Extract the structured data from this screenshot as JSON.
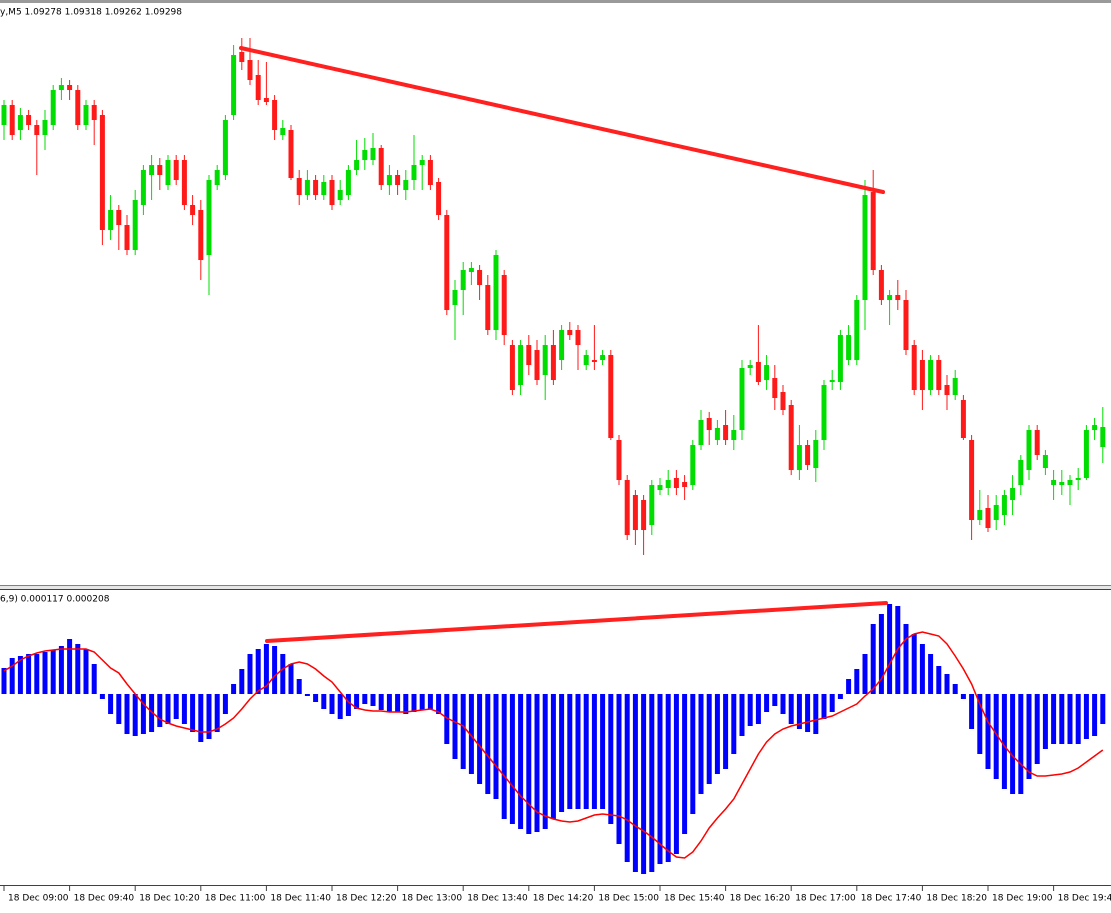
{
  "chart_data": [
    {
      "type": "candlestick",
      "title": "y,M5 1.09278 1.09318 1.09262 1.09298",
      "ylim": [
        1.09135,
        1.0972
      ],
      "up_color": "#00dd00",
      "down_color": "#ff1a1a",
      "open": [
        1.096,
        1.0962,
        1.09595,
        1.0961,
        1.096,
        1.0959,
        1.096,
        1.09635,
        1.0964,
        1.09635,
        1.096,
        1.0962,
        1.0961,
        1.09495,
        1.09515,
        1.095,
        1.09475,
        1.0952,
        1.0955,
        1.0956,
        1.0954,
        1.09565,
        1.09565,
        1.0952,
        1.09515,
        1.0947,
        1.0954,
        1.0955,
        1.0961,
        1.09673,
        1.09665,
        1.0965,
        1.09627,
        1.09625,
        1.0959,
        1.09595,
        1.09547,
        1.0953,
        1.09545,
        1.0953,
        1.09545,
        1.09525,
        1.0953,
        1.09555,
        1.09565,
        1.09565,
        1.09577,
        1.0954,
        1.0955,
        1.09535,
        1.09545,
        1.0956,
        1.09565,
        1.09543,
        1.0951,
        1.0942,
        1.09435,
        1.09453,
        1.09455,
        1.0944,
        1.09395,
        1.0945,
        1.0938,
        1.0934,
        1.0938,
        1.09375,
        1.0935,
        1.0938,
        1.09365,
        1.09395,
        1.09395,
        1.0936,
        1.09365,
        1.09365,
        1.0937,
        1.09285,
        1.09245,
        1.0923,
        1.09225,
        1.092,
        1.09235,
        1.09237,
        1.09247,
        1.09243,
        1.0924,
        1.0928,
        1.09307,
        1.09285,
        1.093,
        1.09285,
        1.09295,
        1.09357,
        1.09363,
        1.09345,
        1.09347,
        1.09333,
        1.0932,
        1.09255,
        1.0928,
        1.09257,
        1.09285,
        1.09343,
        1.09343,
        1.09365,
        1.09365,
        1.09425,
        1.09533,
        1.09455,
        1.09425,
        1.0943,
        1.09425,
        1.0938,
        1.09365,
        1.09335,
        1.09365,
        1.0934,
        1.0933,
        1.09325,
        1.09285,
        1.09205,
        1.09217,
        1.09205,
        1.0921,
        1.09225,
        1.0924,
        1.09255,
        1.09295,
        1.09257,
        1.0924,
        1.0924,
        1.0924,
        1.09245,
        1.09247,
        1.09295,
        1.09278
      ],
      "high": [
        1.09625,
        1.09625,
        1.09617,
        1.09615,
        1.09605,
        1.09615,
        1.0964,
        1.09647,
        1.09645,
        1.0964,
        1.09625,
        1.09625,
        1.09615,
        1.0953,
        1.0952,
        1.0951,
        1.09535,
        1.0956,
        1.0957,
        1.09567,
        1.0957,
        1.0957,
        1.0957,
        1.0953,
        1.09525,
        1.0955,
        1.0956,
        1.0961,
        1.0968,
        1.09687,
        1.09687,
        1.09665,
        1.09663,
        1.0963,
        1.09605,
        1.096,
        1.09555,
        1.09555,
        1.0955,
        1.0955,
        1.0955,
        1.09545,
        1.0956,
        1.09585,
        1.09587,
        1.09592,
        1.0958,
        1.0956,
        1.09555,
        1.09555,
        1.0959,
        1.0957,
        1.0957,
        1.09547,
        1.09515,
        1.09445,
        1.09463,
        1.09463,
        1.0946,
        1.0945,
        1.09475,
        1.09455,
        1.09385,
        1.09385,
        1.0939,
        1.09385,
        1.0939,
        1.09395,
        1.094,
        1.09403,
        1.094,
        1.09375,
        1.094,
        1.09375,
        1.09375,
        1.0929,
        1.0925,
        1.09235,
        1.0923,
        1.09245,
        1.09247,
        1.09255,
        1.09255,
        1.0925,
        1.09285,
        1.09315,
        1.09313,
        1.09305,
        1.09315,
        1.0931,
        1.09365,
        1.09365,
        1.094,
        1.0937,
        1.0936,
        1.0934,
        1.09325,
        1.093,
        1.09285,
        1.09295,
        1.09345,
        1.09355,
        1.09395,
        1.094,
        1.0943,
        1.09545,
        1.09555,
        1.0946,
        1.09435,
        1.09445,
        1.09435,
        1.09385,
        1.09375,
        1.0937,
        1.0937,
        1.0935,
        1.09355,
        1.0933,
        1.0929,
        1.09235,
        1.0923,
        1.0923,
        1.09235,
        1.0925,
        1.0927,
        1.093,
        1.093,
        1.09275,
        1.09255,
        1.09255,
        1.0925,
        1.09257,
        1.093,
        1.09307,
        1.09318
      ],
      "low": [
        1.09585,
        1.09585,
        1.09585,
        1.09595,
        1.0955,
        1.09575,
        1.09595,
        1.09625,
        1.09625,
        1.09595,
        1.09595,
        1.0958,
        1.0948,
        1.09485,
        1.09475,
        1.0947,
        1.0947,
        1.0951,
        1.09525,
        1.09535,
        1.09535,
        1.0954,
        1.09515,
        1.095,
        1.09445,
        1.0943,
        1.09535,
        1.09545,
        1.09605,
        1.09655,
        1.0964,
        1.0962,
        1.0962,
        1.09585,
        1.09585,
        1.09545,
        1.0952,
        1.09525,
        1.09525,
        1.09525,
        1.09515,
        1.0952,
        1.09525,
        1.0955,
        1.09555,
        1.0956,
        1.09535,
        1.0953,
        1.0953,
        1.09525,
        1.09535,
        1.09535,
        1.09535,
        1.09505,
        1.0941,
        1.09385,
        1.0941,
        1.0944,
        1.09425,
        1.0939,
        1.09385,
        1.0938,
        1.0933,
        1.0933,
        1.0935,
        1.0934,
        1.09325,
        1.0934,
        1.09355,
        1.09385,
        1.09355,
        1.09355,
        1.09355,
        1.0936,
        1.09285,
        1.0924,
        1.09185,
        1.0918,
        1.0917,
        1.0919,
        1.0923,
        1.0923,
        1.0923,
        1.09225,
        1.09235,
        1.09275,
        1.0928,
        1.0928,
        1.0928,
        1.09275,
        1.09285,
        1.0935,
        1.0934,
        1.09335,
        1.09315,
        1.0931,
        1.0925,
        1.09245,
        1.09255,
        1.09243,
        1.09275,
        1.09335,
        1.09335,
        1.0936,
        1.0936,
        1.09395,
        1.0945,
        1.0942,
        1.094,
        1.09415,
        1.0937,
        1.0933,
        1.09315,
        1.0933,
        1.0933,
        1.09315,
        1.09325,
        1.09285,
        1.09185,
        1.092,
        1.09193,
        1.09195,
        1.092,
        1.0921,
        1.0923,
        1.09245,
        1.09265,
        1.0925,
        1.09225,
        1.0923,
        1.0922,
        1.09235,
        1.09245,
        1.09285,
        1.09262
      ],
      "close": [
        1.0962,
        1.0959,
        1.0961,
        1.096,
        1.0959,
        1.09605,
        1.09635,
        1.0964,
        1.09635,
        1.096,
        1.0962,
        1.09605,
        1.09495,
        1.09515,
        1.095,
        1.09475,
        1.09525,
        1.09555,
        1.0956,
        1.0955,
        1.09565,
        1.09545,
        1.0952,
        1.0951,
        1.09465,
        1.09545,
        1.09555,
        1.09605,
        1.0967,
        1.09663,
        1.09645,
        1.09625,
        1.09623,
        1.09595,
        1.09597,
        1.09547,
        1.0953,
        1.09545,
        1.0953,
        1.09543,
        1.0952,
        1.09535,
        1.09555,
        1.09565,
        1.09575,
        1.09577,
        1.0954,
        1.0955,
        1.0954,
        1.09545,
        1.0956,
        1.09565,
        1.0954,
        1.0951,
        1.09415,
        1.09435,
        1.09455,
        1.09457,
        1.0944,
        1.09395,
        1.0947,
        1.0939,
        1.09335,
        1.0938,
        1.0936,
        1.09345,
        1.0938,
        1.09345,
        1.09395,
        1.0939,
        1.0938,
        1.0937,
        1.09363,
        1.0937,
        1.09287,
        1.09245,
        1.0919,
        1.09195,
        1.09195,
        1.0924,
        1.0924,
        1.09245,
        1.09237,
        1.09238,
        1.0928,
        1.09305,
        1.09295,
        1.09297,
        1.09285,
        1.09295,
        1.09357,
        1.0936,
        1.09343,
        1.0936,
        1.09327,
        1.09315,
        1.09255,
        1.0928,
        1.0926,
        1.09285,
        1.0934,
        1.09345,
        1.0939,
        1.0939,
        1.09425,
        1.0953,
        1.09455,
        1.09425,
        1.0943,
        1.09425,
        1.09375,
        1.09335,
        1.09335,
        1.09365,
        1.09335,
        1.0933,
        1.09347,
        1.09287,
        1.09205,
        1.09215,
        1.09197,
        1.0922,
        1.0923,
        1.09237,
        1.09265,
        1.09295,
        1.0927,
        1.0927,
        1.09245,
        1.09243,
        1.09245,
        1.09247,
        1.09295,
        1.093,
        1.09298
      ]
    },
    {
      "type": "macd",
      "title": "6,9) 0.000117 0.000208",
      "ylim": [
        -0.000382,
        0.000188
      ],
      "color": "#0000ff",
      "signal_color": "#ff0000",
      "values": [
        5.2e-05,
        7.2e-05,
        7.6e-05,
        8e-05,
        8e-05,
        8.4e-05,
        8.8e-05,
        9.6e-05,
        0.00011,
        0.0001,
        9e-05,
        6e-05,
        -1e-05,
        -4e-05,
        -6e-05,
        -8e-05,
        -8.4e-05,
        -8e-05,
        -7.6e-05,
        -6.6e-05,
        -6e-05,
        -5e-05,
        -6e-05,
        -7.6e-05,
        -9.6e-05,
        -9e-05,
        -7.6e-05,
        -4e-05,
        2e-05,
        5e-05,
        8e-05,
        9e-05,
        0.0001,
        9.6e-05,
        8e-05,
        6e-05,
        3e-05,
        -4e-06,
        -1.6e-05,
        -3e-05,
        -4e-05,
        -5e-05,
        -4.4e-05,
        -3e-05,
        -2e-05,
        -2.4e-05,
        -3.2e-05,
        -3.6e-05,
        -3.6e-05,
        -4e-05,
        -3.6e-05,
        -3.2e-05,
        -3e-05,
        -4e-05,
        -0.0001,
        -0.00013,
        -0.00015,
        -0.00016,
        -0.00018,
        -0.0002,
        -0.00021,
        -0.00025,
        -0.00026,
        -0.00027,
        -0.00028,
        -0.000276,
        -0.00027,
        -0.00025,
        -0.000236,
        -0.00023,
        -0.00023,
        -0.00023,
        -0.00023,
        -0.00023,
        -0.00026,
        -0.0003,
        -0.000336,
        -0.000356,
        -0.00036,
        -0.000356,
        -0.00034,
        -0.000336,
        -0.00032,
        -0.00028,
        -0.00024,
        -0.0002,
        -0.00018,
        -0.00016,
        -0.00015,
        -0.00012,
        -8.4e-05,
        -6.4e-05,
        -6e-05,
        -3.6e-05,
        -2.4e-05,
        -4e-05,
        -6e-05,
        -7e-05,
        -7.6e-05,
        -8e-05,
        -5e-05,
        -3.6e-05,
        -1e-05,
        3e-05,
        5e-05,
        8e-05,
        0.00014,
        0.00016,
        0.00018,
        0.000176,
        0.00014,
        0.00012,
        0.0001,
        8e-05,
        5.6e-05,
        4e-05,
        2e-05,
        -1e-05,
        -7e-05,
        -0.00012,
        -0.00015,
        -0.00017,
        -0.00019,
        -0.0002,
        -0.0002,
        -0.00017,
        -0.00014,
        -0.00011,
        -0.0001,
        -0.0001,
        -0.0001,
        -0.0001,
        -9e-05,
        -8.4e-05,
        -6e-05
      ],
      "signal": [
        4.6e-05,
        5.6e-05,
        6.8e-05,
        7.6e-05,
        8.2e-05,
        8.6e-05,
        8.8e-05,
        9e-05,
        9e-05,
        9e-05,
        9e-05,
        8.4e-05,
        6.8e-05,
        5.2e-05,
        4.2e-05,
        2e-05,
        0,
        -2e-05,
        -3.6e-05,
        -5e-05,
        -5.8e-05,
        -6.4e-05,
        -6.8e-05,
        -7.2e-05,
        -7.6e-05,
        -7.6e-05,
        -7e-05,
        -6e-05,
        -4.8e-05,
        -3e-05,
        -1e-05,
        6e-06,
        1.6e-05,
        3.6e-05,
        5e-05,
        6e-05,
        6.4e-05,
        6e-05,
        5e-05,
        3.6e-05,
        2.4e-05,
        4e-06,
        -1.6e-05,
        -2.8e-05,
        -3.2e-05,
        -3.4e-05,
        -3.4e-05,
        -3.6e-05,
        -3.6e-05,
        -3.6e-05,
        -3.4e-05,
        -3.2e-05,
        -3e-05,
        -3.6e-05,
        -4.8e-05,
        -5.6e-05,
        -6.4e-05,
        -8.4e-05,
        -0.000104,
        -0.000124,
        -0.000144,
        -0.000164,
        -0.000184,
        -0.000204,
        -0.00022,
        -0.000236,
        -0.000244,
        -0.00025,
        -0.000254,
        -0.000256,
        -0.000254,
        -0.000248,
        -0.000242,
        -0.00024,
        -0.000242,
        -0.000244,
        -0.000252,
        -0.000264,
        -0.000274,
        -0.000286,
        -0.0003,
        -0.000314,
        -0.000326,
        -0.000328,
        -0.000316,
        -0.000294,
        -0.000268,
        -0.000248,
        -0.00023,
        -0.00021,
        -0.00018,
        -0.00015,
        -0.00012,
        -9.6e-05,
        -8e-05,
        -7e-05,
        -6.4e-05,
        -6e-05,
        -5.6e-05,
        -5.2e-05,
        -4.8e-05,
        -4.4e-05,
        -3.6e-05,
        -2.8e-05,
        -2e-05,
        -4e-06,
        1e-05,
        3e-05,
        6e-05,
        9e-05,
        0.00011,
        0.00012,
        0.000124,
        0.00012,
        0.000116,
        0.0001,
        7.6e-05,
        5e-05,
        2e-05,
        -2e-05,
        -5.6e-05,
        -8e-05,
        -0.000104,
        -0.000124,
        -0.00014,
        -0.000156,
        -0.000164,
        -0.000164,
        -0.000162,
        -0.00016,
        -0.000156,
        -0.000148,
        -0.000136,
        -0.000124,
        -0.000112
      ],
      "xticks": [
        {
          "value": 0,
          "label": "18 Dec 09:00"
        },
        {
          "value": 8,
          "label": "18 Dec 09:40"
        },
        {
          "value": 16,
          "label": "18 Dec 10:20"
        },
        {
          "value": 24,
          "label": "18 Dec 11:00"
        },
        {
          "value": 32,
          "label": "18 Dec 11:40"
        },
        {
          "value": 40,
          "label": "18 Dec 12:20"
        },
        {
          "value": 48,
          "label": "18 Dec 13:00"
        },
        {
          "value": 56,
          "label": "18 Dec 13:40"
        },
        {
          "value": 64,
          "label": "18 Dec 14:20"
        },
        {
          "value": 72,
          "label": "18 Dec 15:00"
        },
        {
          "value": 80,
          "label": "18 Dec 15:40"
        },
        {
          "value": 88,
          "label": "18 Dec 16:20"
        },
        {
          "value": 96,
          "label": "18 Dec 17:00"
        },
        {
          "value": 104,
          "label": "18 Dec 17:40"
        },
        {
          "value": 112,
          "label": "18 Dec 18:20"
        },
        {
          "value": 120,
          "label": "18 Dec 19:00"
        },
        {
          "value": 128,
          "label": "18 Dec 19:4"
        }
      ]
    }
  ]
}
